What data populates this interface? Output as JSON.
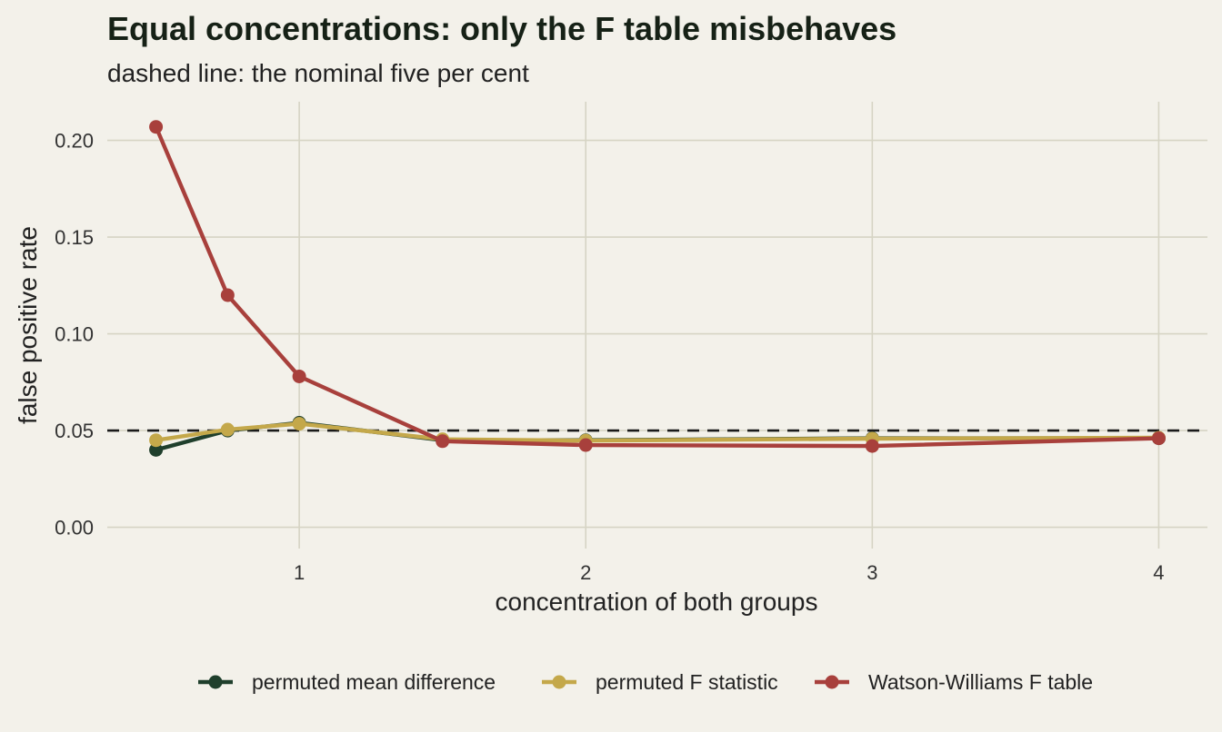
{
  "chart_data": {
    "type": "line",
    "title": "Equal concentrations: only the F table misbehaves",
    "subtitle": "dashed line: the nominal five per cent",
    "xlabel": "concentration of both groups",
    "ylabel": "false positive rate",
    "xlim": [
      0.33,
      4.17
    ],
    "ylim": [
      -0.011,
      0.22
    ],
    "x_ticks": [
      1,
      2,
      3,
      4
    ],
    "x_tick_labels": [
      "1",
      "2",
      "3",
      "4"
    ],
    "y_ticks": [
      0,
      0.05,
      0.1,
      0.15,
      0.2
    ],
    "y_tick_labels": [
      "0.00",
      "0.05",
      "0.10",
      "0.15",
      "0.20"
    ],
    "reference_line": {
      "y": 0.05,
      "style": "dashed",
      "color": "#1a1a1a"
    },
    "grid": true,
    "legend_position": "bottom",
    "x": [
      0.5,
      0.75,
      1,
      1.5,
      2,
      3,
      4
    ],
    "series": [
      {
        "name": "permuted mean difference",
        "color": "#1f3f2c",
        "values": [
          0.04,
          0.05,
          0.054,
          0.045,
          0.045,
          0.046,
          0.046
        ]
      },
      {
        "name": "permuted F statistic",
        "color": "#c4a84a",
        "values": [
          0.045,
          0.0505,
          0.0535,
          0.0455,
          0.0448,
          0.0458,
          0.0463
        ]
      },
      {
        "name": "Watson-Williams F table",
        "color": "#a8403c",
        "values": [
          0.207,
          0.12,
          0.078,
          0.0445,
          0.0425,
          0.042,
          0.046
        ]
      }
    ]
  }
}
